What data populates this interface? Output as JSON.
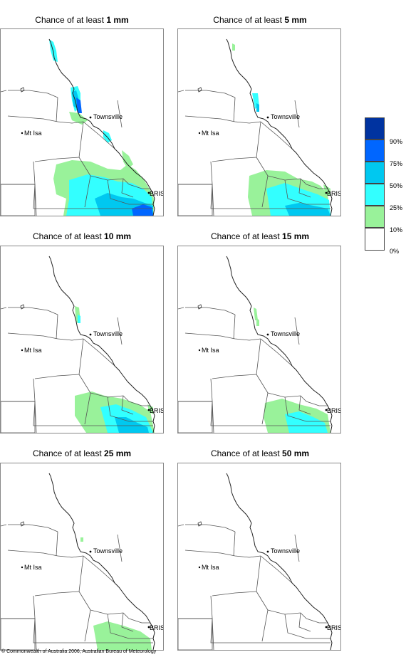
{
  "panels": [
    {
      "prefix": "Chance of at least ",
      "amount": "1 mm",
      "level": 1
    },
    {
      "prefix": "Chance of at least ",
      "amount": "5 mm",
      "level": 2
    },
    {
      "prefix": "Chance of at least ",
      "amount": "10 mm",
      "level": 3
    },
    {
      "prefix": "Chance of at least ",
      "amount": "15 mm",
      "level": 4
    },
    {
      "prefix": "Chance of at least ",
      "amount": "25 mm",
      "level": 5
    },
    {
      "prefix": "Chance of at least ",
      "amount": "50 mm",
      "level": 6
    }
  ],
  "places": {
    "townsville": "Townsville",
    "mt_isa": "Mt Isa",
    "bris": "BRIS"
  },
  "legend": {
    "labels": [
      "90%",
      "75%",
      "50%",
      "25%",
      "10%",
      "0%"
    ],
    "colors": [
      "#0033a0",
      "#0066ff",
      "#00c8f0",
      "#33ffff",
      "#99f29a",
      "#ffffff"
    ]
  },
  "copyright": "© Commonwealth of Australia 2006, Australian Bureau of Meteorology"
}
